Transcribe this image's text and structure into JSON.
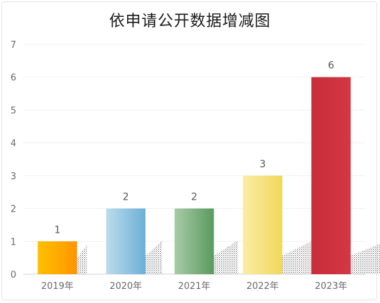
{
  "chart_data": {
    "type": "bar",
    "title": "依申请公开数据增减图",
    "categories": [
      "2019年",
      "2020年",
      "2021年",
      "2022年",
      "2023年"
    ],
    "values": [
      1,
      2,
      2,
      3,
      6
    ],
    "ylim": [
      0,
      7
    ],
    "yticks": [
      0,
      1,
      2,
      3,
      4,
      5,
      6,
      7
    ],
    "grid": true,
    "colors": [
      "#ff9f00",
      "#7fb8d8",
      "#6aa26a",
      "#f2dc6a",
      "#cf3340"
    ]
  }
}
